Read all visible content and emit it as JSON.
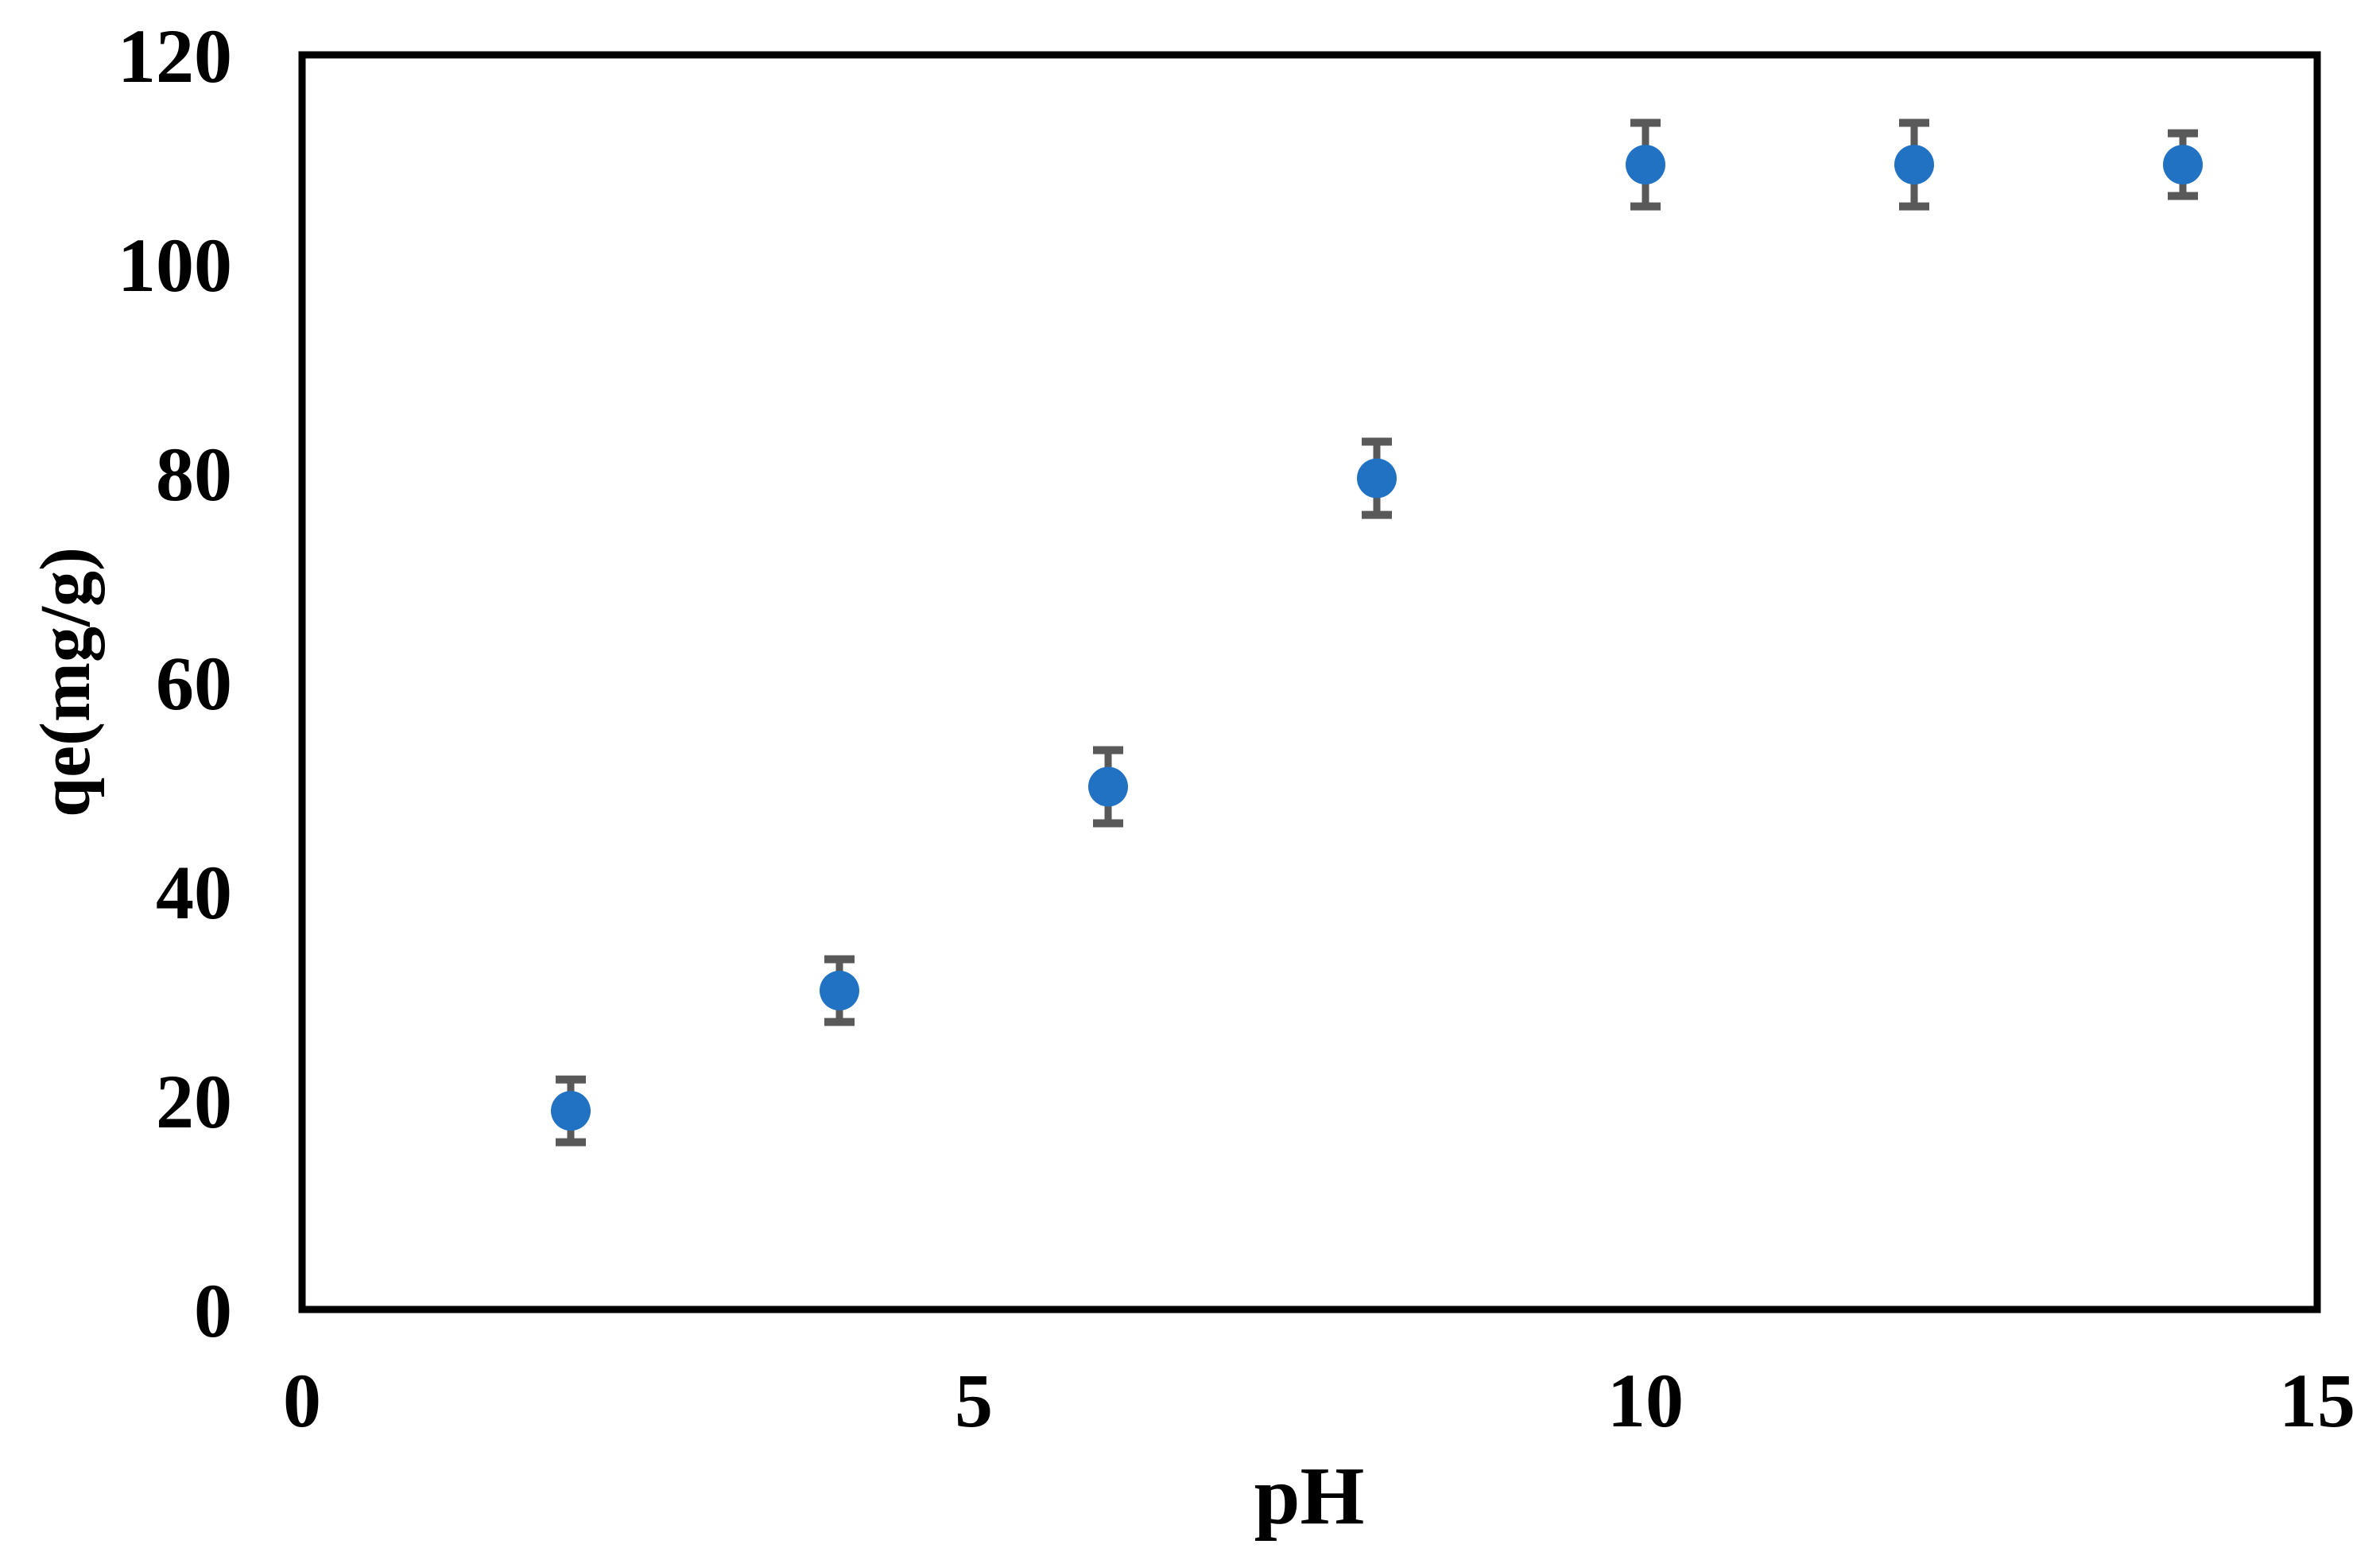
{
  "figure": {
    "background_color": "#ffffff",
    "axis_color": "#000000"
  },
  "chart_data": {
    "type": "scatter",
    "title": "",
    "xlabel": "pH",
    "ylabel": "qe(mg/g)",
    "xlim": [
      0,
      15
    ],
    "ylim": [
      0,
      120
    ],
    "x_ticks": [
      0,
      5,
      10,
      15
    ],
    "y_ticks": [
      0,
      20,
      40,
      60,
      80,
      100,
      120
    ],
    "grid": false,
    "legend_position": "none",
    "series": [
      {
        "name": "qe",
        "marker": "circle",
        "marker_color": "#2272C3",
        "error_bar_color": "#595959",
        "points": [
          {
            "x": 2,
            "y": 19,
            "yerr": 3
          },
          {
            "x": 4,
            "y": 30.5,
            "yerr": 3
          },
          {
            "x": 6,
            "y": 50,
            "yerr": 3.5
          },
          {
            "x": 8,
            "y": 79.5,
            "yerr": 3.5
          },
          {
            "x": 10,
            "y": 109.5,
            "yerr": 4
          },
          {
            "x": 12,
            "y": 109.5,
            "yerr": 4
          },
          {
            "x": 14,
            "y": 109.5,
            "yerr": 3
          }
        ]
      }
    ]
  }
}
